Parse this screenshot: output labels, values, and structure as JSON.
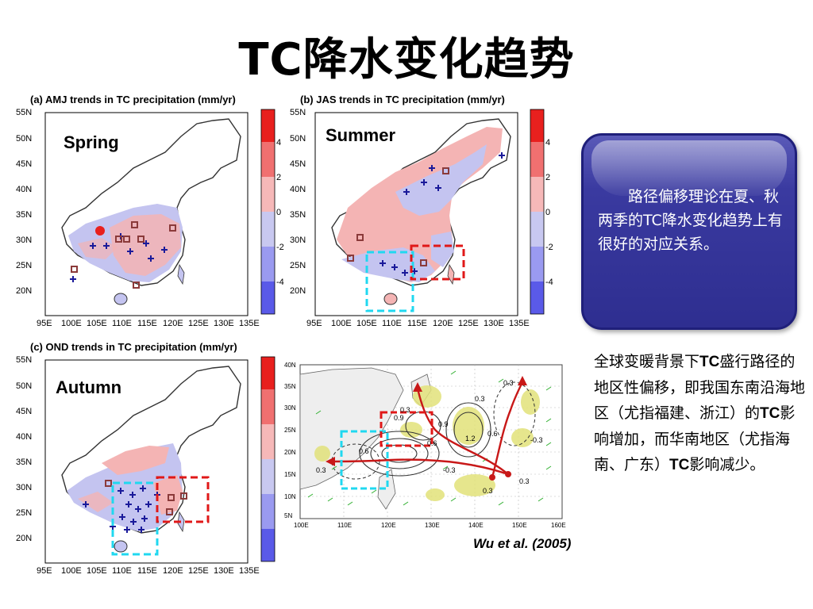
{
  "slide": {
    "title": "TC降水变化趋势"
  },
  "panels": {
    "a": {
      "title": "(a) AMJ trends in TC precipitation (mm/yr)",
      "season": "Spring"
    },
    "b": {
      "title": "(b) JAS trends in TC precipitation (mm/yr)",
      "season": "Summer"
    },
    "c": {
      "title": "(c) OND trends in TC precipitation (mm/yr)",
      "season": "Autumn"
    }
  },
  "axes": {
    "lat_ticks": [
      "55N",
      "50N",
      "45N",
      "40N",
      "35N",
      "30N",
      "25N",
      "20N"
    ],
    "lon_ticks": [
      "95E",
      "100E",
      "105E",
      "110E",
      "115E",
      "120E",
      "125E",
      "130E",
      "135E"
    ],
    "colorbar_ticks": [
      "4",
      "2",
      "0",
      "-2",
      "-4"
    ],
    "colorbar_colors": [
      "#e8201e",
      "#f07070",
      "#f6b8b8",
      "#ffffff",
      "#c8c8f0",
      "#9a9af0",
      "#5a5ae8"
    ],
    "track_lat_ticks": [
      "40N",
      "35N",
      "30N",
      "25N",
      "20N",
      "15N",
      "10N",
      "5N"
    ],
    "track_lon_ticks": [
      "100E",
      "110E",
      "120E",
      "130E",
      "140E",
      "150E",
      "160E"
    ]
  },
  "track_map": {
    "contour_labels": [
      "0.3",
      "0.6",
      "0.9",
      "0.3",
      "0.6",
      "0.9",
      "1.2",
      "0.6",
      "0.3",
      "-0.3",
      "-0.3",
      "0.3",
      "0.3",
      "0.3"
    ]
  },
  "callout": {
    "text": "路径偏移理论在夏、秋两季的TC降水变化趋势上有很好的对应关系。"
  },
  "side_note": {
    "line1": "全球变暖背景下",
    "tc1": "TC",
    "line2": "盛行路径的地区性偏移，即我国东南沿海地区（尤指福建、浙江）的",
    "tc2": "TC",
    "line3": "影响增加，而华南地区（尤指海南、广东）",
    "tc3": "TC",
    "line4": "影响减少。"
  },
  "citation": "Wu et al. (2005)",
  "colors": {
    "positive_trend": "#f4b4b4",
    "negative_trend": "#c4c4f0",
    "marker_plus": "#1a1a9a",
    "marker_square": "#8b3a3a",
    "box_red": "#e01818",
    "box_cyan": "#20d8f0",
    "callout_bg": "#2e2e90"
  }
}
